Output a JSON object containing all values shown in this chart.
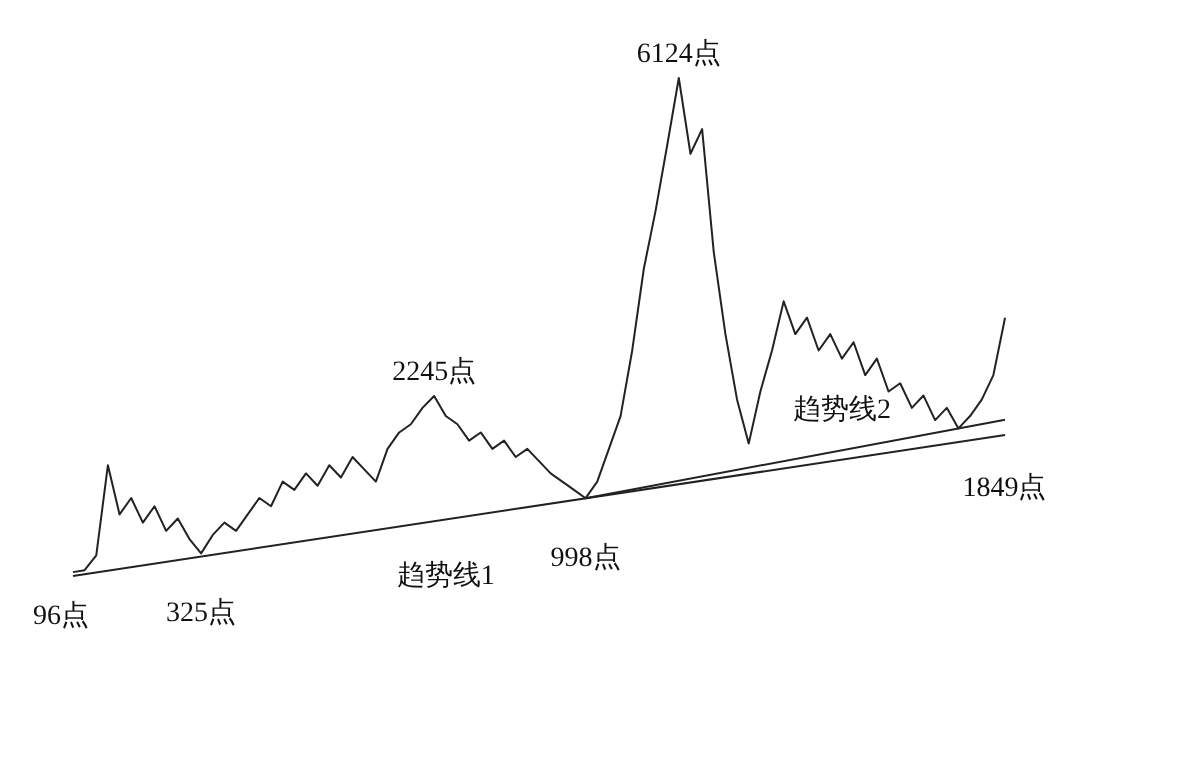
{
  "chart_data": {
    "type": "line",
    "categories": [
      null,
      null,
      null,
      null,
      null,
      null,
      null,
      null,
      null,
      null,
      null,
      null,
      null,
      null,
      null,
      null,
      null,
      null,
      null,
      null,
      null,
      null,
      null,
      null,
      null,
      null,
      null,
      null,
      null,
      null,
      null,
      null,
      null,
      null,
      null,
      null,
      null,
      null,
      null,
      null,
      null,
      null,
      null,
      null,
      null,
      null,
      null,
      null,
      null,
      null,
      null,
      null,
      null,
      null,
      null,
      null,
      null,
      null,
      null,
      null,
      null,
      null,
      null,
      null,
      null,
      null,
      null,
      null,
      null,
      null,
      null,
      null,
      null,
      null,
      null,
      null,
      null,
      null,
      null,
      null,
      null
    ],
    "tick_labels": false,
    "series": [
      {
        "color": "#222222",
        "values": [
          96,
          120,
          300,
          1400,
          800,
          1000,
          700,
          900,
          600,
          750,
          500,
          325,
          550,
          700,
          600,
          800,
          1000,
          900,
          1200,
          1100,
          1300,
          1150,
          1400,
          1250,
          1500,
          1350,
          1200,
          1600,
          1800,
          1900,
          2100,
          2245,
          2000,
          1900,
          1700,
          1800,
          1600,
          1700,
          1500,
          1600,
          1450,
          1300,
          1200,
          1100,
          998,
          1200,
          1600,
          2000,
          2800,
          3800,
          4500,
          5300,
          6124,
          5200,
          5500,
          4000,
          3000,
          2200,
          1664,
          2300,
          2800,
          3400,
          3000,
          3200,
          2800,
          3000,
          2700,
          2900,
          2500,
          2700,
          2300,
          2400,
          2100,
          2250,
          1950,
          2100,
          1849,
          2000,
          2200,
          2500,
          3200
        ],
        "value_labels": [
          "96点",
          null,
          null,
          null,
          null,
          null,
          null,
          null,
          null,
          null,
          null,
          "325点",
          null,
          null,
          null,
          null,
          null,
          null,
          null,
          null,
          null,
          null,
          null,
          null,
          null,
          null,
          null,
          null,
          null,
          null,
          null,
          "2245点",
          null,
          null,
          null,
          null,
          null,
          null,
          null,
          null,
          null,
          null,
          null,
          null,
          "998点",
          null,
          null,
          null,
          null,
          null,
          null,
          null,
          "6124点",
          null,
          null,
          null,
          null,
          null,
          null,
          null,
          null,
          null,
          null,
          null,
          null,
          null,
          null,
          null,
          null,
          null,
          null,
          null,
          null,
          null,
          null,
          null,
          "1849点",
          null,
          null,
          null,
          null
        ]
      },
      {
        "name": "趋势线1",
        "color": "#222222",
        "values": [
          50,
          null,
          null,
          null,
          null,
          null,
          null,
          null,
          null,
          null,
          null,
          null,
          null,
          null,
          null,
          null,
          null,
          null,
          null,
          null,
          null,
          null,
          null,
          null,
          null,
          null,
          null,
          null,
          null,
          null,
          null,
          null,
          null,
          null,
          null,
          null,
          null,
          null,
          null,
          null,
          null,
          null,
          null,
          null,
          null,
          null,
          null,
          null,
          null,
          null,
          null,
          null,
          null,
          null,
          null,
          null,
          null,
          null,
          null,
          null,
          null,
          null,
          null,
          null,
          null,
          null,
          null,
          null,
          null,
          null,
          null,
          null,
          null,
          null,
          null,
          null,
          null,
          null,
          null,
          null,
          1770
        ]
      },
      {
        "name": "趋势线2",
        "color": "#222222",
        "values": [
          null,
          null,
          null,
          null,
          null,
          null,
          null,
          null,
          null,
          null,
          null,
          null,
          null,
          null,
          null,
          null,
          null,
          null,
          null,
          null,
          null,
          null,
          null,
          null,
          null,
          null,
          null,
          null,
          null,
          null,
          null,
          null,
          null,
          null,
          null,
          null,
          null,
          null,
          null,
          null,
          null,
          null,
          null,
          null,
          998,
          null,
          null,
          null,
          null,
          null,
          null,
          null,
          null,
          null,
          null,
          null,
          null,
          null,
          null,
          null,
          null,
          null,
          null,
          null,
          null,
          null,
          null,
          null,
          null,
          null,
          null,
          null,
          null,
          null,
          null,
          null,
          null,
          null,
          null,
          null,
          1955
        ]
      }
    ]
  }
}
